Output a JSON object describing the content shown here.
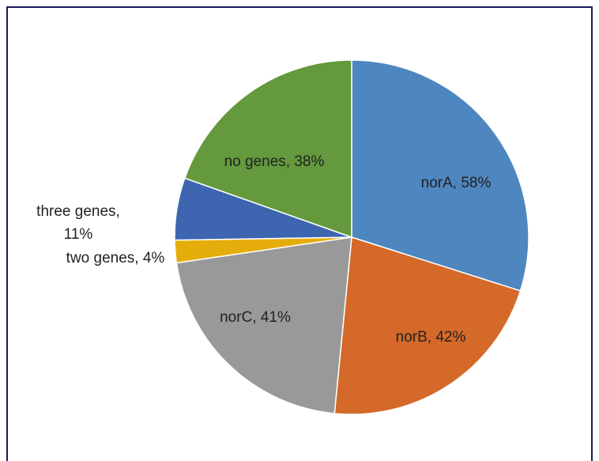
{
  "chart_data": {
    "type": "pie",
    "values": [
      58,
      42,
      41,
      4,
      11,
      38
    ],
    "value_labels": [
      "norA, 58%",
      "norB, 42%",
      "norC, 41%",
      "two genes, 4%",
      "three genes, 11%",
      "no genes, 38%"
    ],
    "colors": [
      "#4e86c0",
      "#d4692a",
      "#999999",
      "#e5ad0c",
      "#3d65b0",
      "#64993d"
    ]
  }
}
